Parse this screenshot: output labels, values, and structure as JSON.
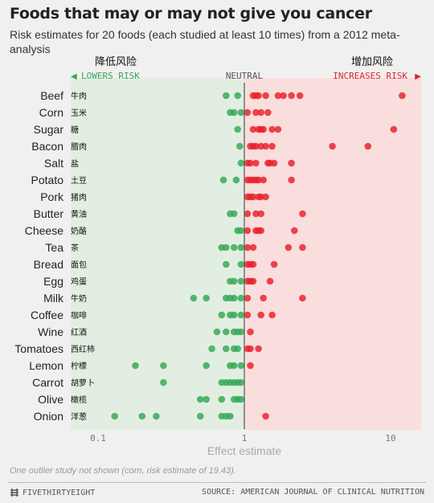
{
  "header": {
    "title": "Foods that may or may not give you cancer",
    "subtitle": "Risk estimates for 20 foods (each studied at least 10 times) from a 2012 meta-analysis"
  },
  "labels": {
    "lowers_cn": "降低风险",
    "increases_cn": "增加风险",
    "lowers": "LOWERS RISK",
    "neutral": "NEUTRAL",
    "increases": "INCREASES RISK",
    "lowers_arrow": "◀",
    "increases_arrow": "▶"
  },
  "footer": {
    "note": "One outlier study not shown (corn, risk estimate of 19.43).",
    "brand": "FIVETHIRTYEIGHT",
    "source": "SOURCE: AMERICAN JOURNAL OF CLINICAL NUTRITION"
  },
  "colors": {
    "green": "#33a853",
    "red": "#e8202a",
    "lower_zone": "#e3eee3",
    "increase_zone": "#f9dedd",
    "green_text": "#3aa655",
    "red_text": "#e2242b"
  },
  "chart_data": {
    "type": "scatter",
    "xscale": "log",
    "xlim": [
      0.09,
      13
    ],
    "neutral_value": 1,
    "xlabel": "Effect estimate",
    "xticks": [
      0.1,
      1,
      10
    ],
    "xtick_labels": [
      "0.1",
      "1",
      "10"
    ],
    "foods": [
      {
        "name": "Beef",
        "cn": "牛肉",
        "values": [
          0.75,
          0.9,
          1.15,
          1.2,
          1.25,
          1.4,
          1.7,
          1.85,
          2.1,
          2.4,
          12
        ]
      },
      {
        "name": "Corn",
        "cn": "玉米",
        "values": [
          0.8,
          0.85,
          0.95,
          1.05,
          1.2,
          1.3,
          1.45
        ]
      },
      {
        "name": "Sugar",
        "cn": "糖",
        "values": [
          0.9,
          1.15,
          1.25,
          1.3,
          1.35,
          1.55,
          1.7,
          10.5
        ]
      },
      {
        "name": "Bacon",
        "cn": "腊肉",
        "values": [
          0.93,
          1.1,
          1.15,
          1.2,
          1.3,
          1.4,
          1.55,
          4,
          7
        ]
      },
      {
        "name": "Salt",
        "cn": "盐",
        "values": [
          0.95,
          1.05,
          1.1,
          1.2,
          1.45,
          1.5,
          1.6,
          2.1
        ]
      },
      {
        "name": "Potato",
        "cn": "土豆",
        "values": [
          0.72,
          0.88,
          1.05,
          1.1,
          1.15,
          1.2,
          1.25,
          1.35,
          2.1
        ]
      },
      {
        "name": "Pork",
        "cn": "猪肉",
        "values": [
          1.05,
          1.1,
          1.15,
          1.25,
          1.3,
          1.4
        ]
      },
      {
        "name": "Butter",
        "cn": "黄油",
        "values": [
          0.8,
          0.85,
          1.05,
          1.2,
          1.3,
          2.5
        ]
      },
      {
        "name": "Cheese",
        "cn": "奶酪",
        "values": [
          0.9,
          0.95,
          1.05,
          1.2,
          1.25,
          1.3,
          2.2
        ]
      },
      {
        "name": "Tea",
        "cn": "茶",
        "values": [
          0.7,
          0.75,
          0.85,
          0.95,
          1.05,
          1.15,
          2.0,
          2.5
        ]
      },
      {
        "name": "Bread",
        "cn": "面包",
        "values": [
          0.75,
          0.95,
          1.05,
          1.1,
          1.15,
          1.6
        ]
      },
      {
        "name": "Egg",
        "cn": "鸡蛋",
        "values": [
          0.8,
          0.85,
          0.95,
          1.05,
          1.1,
          1.15,
          1.5
        ]
      },
      {
        "name": "Milk",
        "cn": "牛奶",
        "values": [
          0.45,
          0.55,
          0.75,
          0.8,
          0.85,
          0.95,
          1.05,
          1.35,
          2.5
        ]
      },
      {
        "name": "Coffee",
        "cn": "咖啡",
        "values": [
          0.7,
          0.8,
          0.85,
          0.95,
          1.05,
          1.3,
          1.55
        ]
      },
      {
        "name": "Wine",
        "cn": "红酒",
        "values": [
          0.65,
          0.75,
          0.85,
          0.9,
          0.95,
          1.1
        ]
      },
      {
        "name": "Tomatoes",
        "cn": "西红柿",
        "values": [
          0.6,
          0.75,
          0.85,
          0.9,
          1.05,
          1.1,
          1.25
        ]
      },
      {
        "name": "Lemon",
        "cn": "柠檬",
        "values": [
          0.18,
          0.28,
          0.55,
          0.8,
          0.85,
          0.95,
          1.1
        ]
      },
      {
        "name": "Carrot",
        "cn": "胡萝卜",
        "values": [
          0.28,
          0.7,
          0.75,
          0.8,
          0.85,
          0.9,
          0.95
        ]
      },
      {
        "name": "Olive",
        "cn": "橄榄",
        "values": [
          0.5,
          0.55,
          0.7,
          0.85,
          0.9,
          0.95
        ]
      },
      {
        "name": "Onion",
        "cn": "洋葱",
        "values": [
          0.13,
          0.2,
          0.25,
          0.5,
          0.7,
          0.75,
          0.8,
          1.4
        ]
      }
    ]
  }
}
